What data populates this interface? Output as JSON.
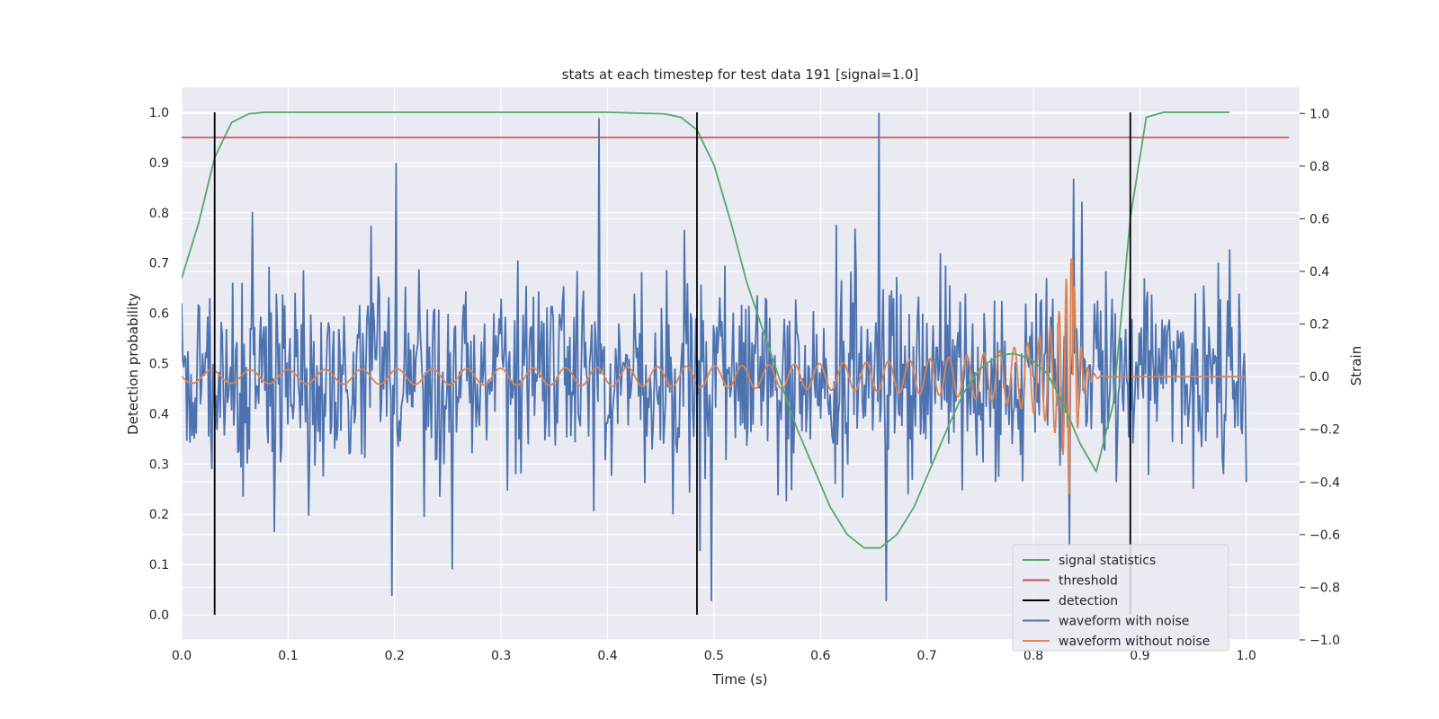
{
  "chart_data": {
    "type": "line",
    "title": "stats at each timestep for test data 191 [signal=1.0]",
    "xlabel": "Time (s)",
    "ylabel_left": "Detection probability",
    "ylabel_right": "Strain",
    "xlim": [
      0.0,
      1.05
    ],
    "ylim_left": [
      -0.05,
      1.05
    ],
    "ylim_right": [
      -1.0,
      1.1
    ],
    "x_ticks": [
      "0.0",
      "0.1",
      "0.2",
      "0.3",
      "0.4",
      "0.5",
      "0.6",
      "0.7",
      "0.8",
      "0.9",
      "1.0"
    ],
    "y_ticks_left": [
      "0.0",
      "0.1",
      "0.2",
      "0.3",
      "0.4",
      "0.5",
      "0.6",
      "0.7",
      "0.8",
      "0.9",
      "1.0"
    ],
    "y_ticks_right": [
      "−1.0",
      "−0.8",
      "−0.6",
      "−0.4",
      "−0.2",
      "0.0",
      "0.2",
      "0.4",
      "0.6",
      "0.8",
      "1.0"
    ],
    "grid": true,
    "legend_position": "bottom-right",
    "colors": {
      "signal_statistics": "#55a868",
      "threshold": "#c44e52",
      "detection": "#000000",
      "waveform_with_noise": "#4c72b0",
      "waveform_without_noise": "#dd8452",
      "plot_background": "#eaeaf2",
      "grid": "#ffffff"
    },
    "legend": [
      {
        "label": "signal statistics",
        "key": "signal_statistics"
      },
      {
        "label": "threshold",
        "key": "threshold"
      },
      {
        "label": "detection",
        "key": "detection"
      },
      {
        "label": "waveform with noise",
        "key": "waveform_with_noise"
      },
      {
        "label": "waveform without noise",
        "key": "waveform_without_noise"
      }
    ],
    "series": [
      {
        "key": "signal_statistics",
        "axis": "left",
        "x": [
          0.0,
          0.016,
          0.031,
          0.047,
          0.063,
          0.078,
          0.094,
          0.11,
          0.2,
          0.3,
          0.4,
          0.453,
          0.469,
          0.484,
          0.5,
          0.516,
          0.531,
          0.547,
          0.563,
          0.578,
          0.594,
          0.609,
          0.625,
          0.641,
          0.656,
          0.672,
          0.688,
          0.703,
          0.719,
          0.734,
          0.75,
          0.766,
          0.781,
          0.797,
          0.813,
          0.828,
          0.844,
          0.859,
          0.875,
          0.891,
          0.906,
          0.922,
          0.938,
          0.984
        ],
        "y": [
          0.67,
          0.78,
          0.91,
          0.98,
          0.997,
          1.0,
          1.0,
          1.0,
          1.0,
          1.0,
          1.0,
          0.997,
          0.99,
          0.965,
          0.895,
          0.78,
          0.66,
          0.56,
          0.46,
          0.37,
          0.29,
          0.215,
          0.16,
          0.133,
          0.133,
          0.16,
          0.215,
          0.29,
          0.37,
          0.44,
          0.49,
          0.515,
          0.52,
          0.51,
          0.48,
          0.42,
          0.34,
          0.285,
          0.42,
          0.79,
          0.99,
          1.0,
          1.0,
          1.0
        ]
      },
      {
        "key": "threshold",
        "axis": "left",
        "x": [
          0.0,
          1.04
        ],
        "y": [
          0.95,
          0.95
        ]
      },
      {
        "key": "detection",
        "axis": "left",
        "type": "vlines",
        "x": [
          0.031,
          0.484,
          0.891
        ],
        "ymin": 0.0,
        "ymax": 1.0
      },
      {
        "key": "waveform_with_noise",
        "axis": "right",
        "generated": "noise",
        "n": 1024,
        "x_range": [
          0.0,
          1.0
        ],
        "amplitude_sd": 0.19,
        "notable_peaks": [
          {
            "x": 0.197,
            "y": -0.83
          },
          {
            "x": 0.201,
            "y": 0.81
          },
          {
            "x": 0.254,
            "y": -0.73
          },
          {
            "x": 0.392,
            "y": 0.98
          },
          {
            "x": 0.487,
            "y": -0.66
          },
          {
            "x": 0.498,
            "y": -0.85
          },
          {
            "x": 0.655,
            "y": 1.0
          },
          {
            "x": 0.662,
            "y": -0.85
          },
          {
            "x": 0.834,
            "y": -0.64
          },
          {
            "x": 0.838,
            "y": 0.75
          }
        ]
      },
      {
        "key": "waveform_without_noise",
        "axis": "right",
        "generated": "chirp",
        "x_range": [
          0.0,
          1.0
        ],
        "start_amplitude": 0.025,
        "peak_amplitude": 0.45,
        "merger_time": 0.837,
        "ringdown_end": 0.865
      }
    ]
  }
}
